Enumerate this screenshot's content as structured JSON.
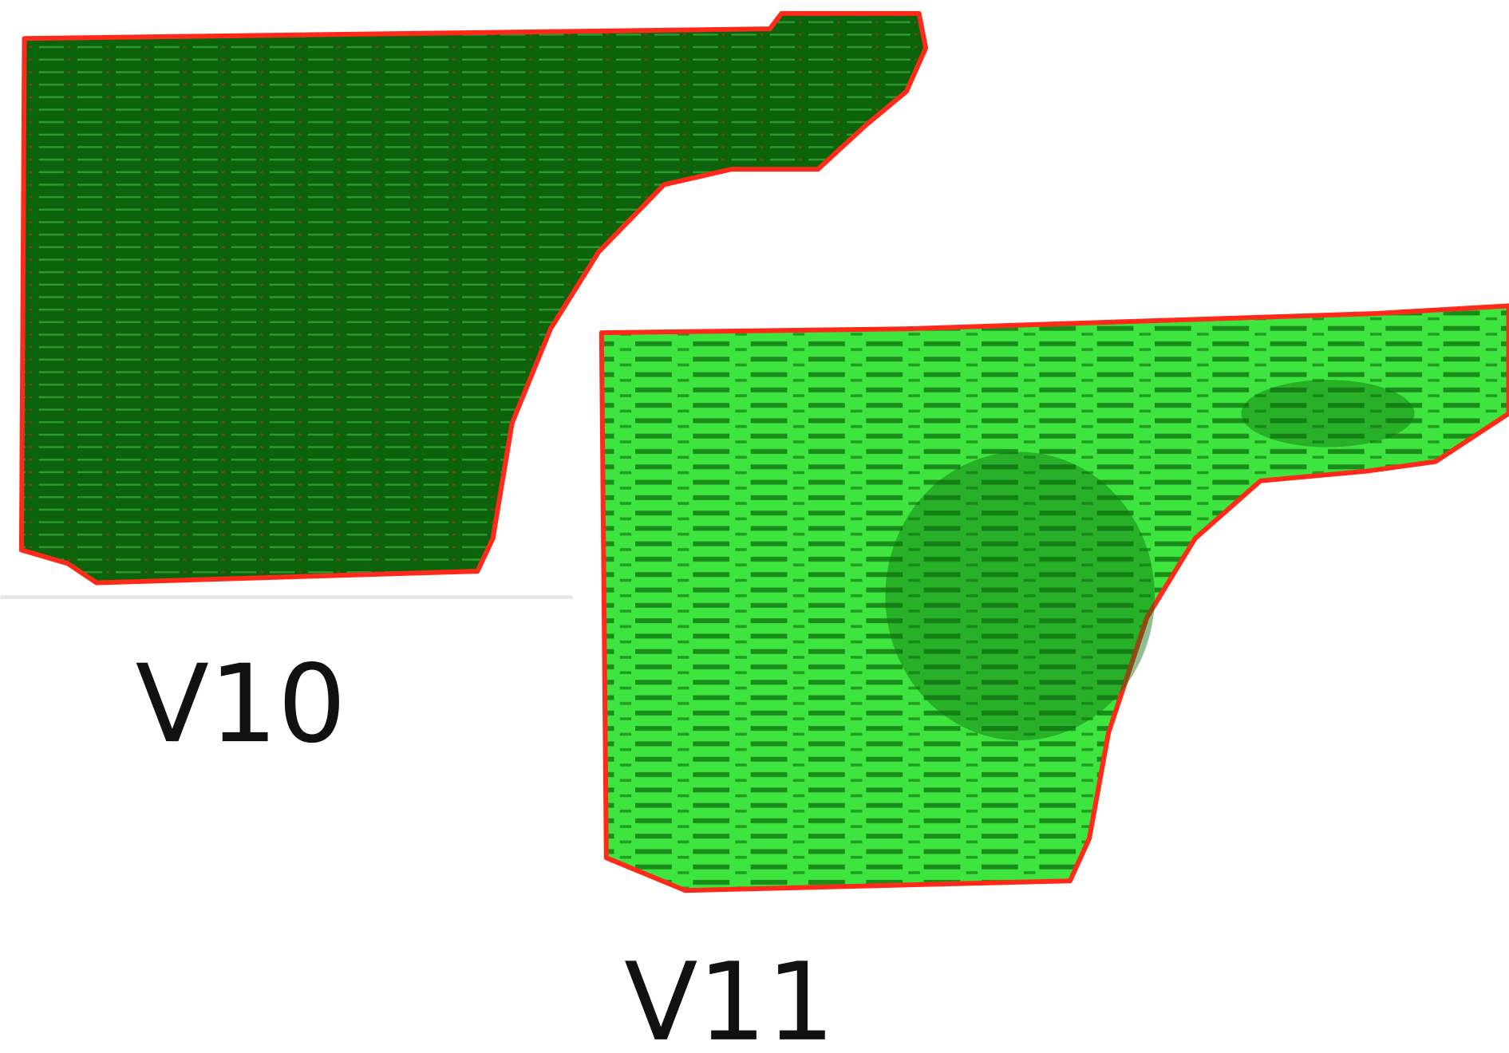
{
  "labels": {
    "left": "V10",
    "right": "V11"
  }
}
